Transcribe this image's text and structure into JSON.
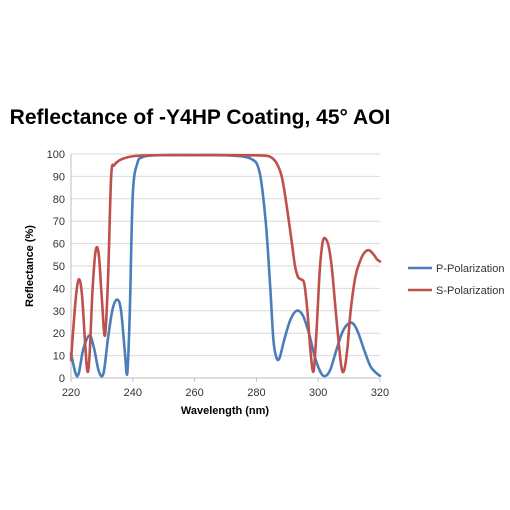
{
  "chart_data": {
    "type": "line",
    "title": "Reflectance of -Y4HP Coating, 45° AOI",
    "xlabel": "Wavelength (nm)",
    "ylabel": "Reflectance (%)",
    "xlim": [
      220,
      320
    ],
    "ylim": [
      0,
      100
    ],
    "xticks": [
      "220",
      "240",
      "260",
      "280",
      "300",
      "320"
    ],
    "yticks": [
      "0",
      "10",
      "20",
      "30",
      "40",
      "50",
      "60",
      "70",
      "80",
      "90",
      "100"
    ],
    "grid": "horizontal",
    "legend_position": "right",
    "series": [
      {
        "name": "P-Polarization",
        "color": "#4a7ebb",
        "x": [
          220,
          221.5,
          222.5,
          224,
          226,
          227.5,
          229,
          230.5,
          232,
          233.5,
          235,
          236.2,
          237.4,
          238.2,
          239,
          240,
          241.5,
          243,
          245,
          250,
          260,
          270,
          278,
          281,
          283,
          284.5,
          285.5,
          286.5,
          287.5,
          289,
          291,
          293,
          295,
          297,
          299,
          301,
          302.5,
          304,
          306,
          308,
          310,
          311.5,
          313,
          315,
          317,
          319,
          320
        ],
        "values": [
          11,
          2,
          2,
          13,
          19,
          13,
          3,
          2,
          18,
          31,
          35,
          30,
          12,
          2,
          28,
          82,
          96,
          98.5,
          99.2,
          99.5,
          99.5,
          99.4,
          98,
          92,
          70,
          40,
          17,
          9,
          9,
          17,
          26,
          30,
          28,
          20,
          9,
          2,
          1,
          4,
          13,
          21,
          24.5,
          24,
          20,
          12,
          5,
          2,
          1
        ]
      },
      {
        "name": "S-Polarization",
        "color": "#c0504d",
        "x": [
          220,
          221.5,
          222.5,
          223.5,
          224.5,
          225.3,
          226,
          227,
          228,
          229,
          230,
          231,
          232,
          233,
          234,
          235.5,
          237,
          240,
          243,
          250,
          260,
          270,
          280,
          284,
          286,
          287.5,
          288.5,
          290,
          291.5,
          292.5,
          293.5,
          294.5,
          295.5,
          296.5,
          297.5,
          298.5,
          299.5,
          300.5,
          301.5,
          302.5,
          303.5,
          304.5,
          306,
          307.5,
          308.5,
          309.5,
          310.5,
          312,
          313.5,
          315,
          316.5,
          318,
          319,
          320
        ],
        "values": [
          8,
          35,
          44,
          38,
          17,
          3,
          10,
          40,
          57,
          55,
          35,
          19,
          45,
          90,
          95,
          97,
          98,
          99,
          99.3,
          99.5,
          99.5,
          99.5,
          99.4,
          99,
          97,
          93,
          88,
          75,
          60,
          50,
          45,
          44,
          42,
          30,
          12,
          3,
          22,
          48,
          61,
          62,
          58,
          48,
          25,
          5,
          4,
          14,
          30,
          45,
          52,
          56,
          57,
          55,
          53,
          52
        ]
      }
    ]
  }
}
